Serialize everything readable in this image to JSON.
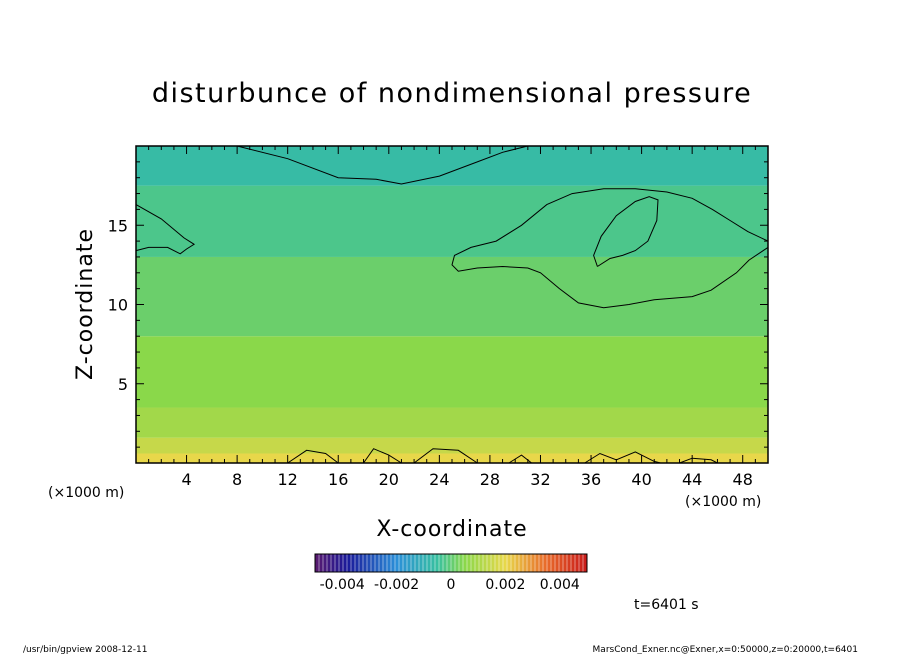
{
  "chart_data": {
    "type": "heatmap",
    "title": "disturbunce of nondimensional pressure",
    "xlabel": "X-coordinate",
    "ylabel": "Z-coordinate",
    "x_unit": "(×1000 m)",
    "y_unit": "(×1000 m)",
    "xlim": [
      0,
      50
    ],
    "ylim": [
      0,
      20
    ],
    "x_ticks": [
      4,
      8,
      12,
      16,
      20,
      24,
      28,
      32,
      36,
      40,
      44,
      48
    ],
    "y_ticks": [
      5,
      10,
      15
    ],
    "colorbar": {
      "range": [
        -0.005,
        0.005
      ],
      "tick_values": [
        -0.004,
        -0.002,
        0,
        0.002,
        0.004
      ],
      "tick_labels": [
        "-0.004",
        "-0.002",
        "0",
        "0.002",
        "0.004"
      ]
    },
    "fill_levels": [
      {
        "z": [
          0.0,
          0.6
        ],
        "value": 0.0008
      },
      {
        "z": [
          0.6,
          1.6
        ],
        "value": 0.0005
      },
      {
        "z": [
          1.6,
          3.5
        ],
        "value": 0.0002
      },
      {
        "z": [
          3.5,
          8.0
        ],
        "value": 0.0
      },
      {
        "z": [
          8.0,
          13.0
        ],
        "value": -0.0002
      },
      {
        "z": [
          13.0,
          17.5
        ],
        "value": -0.0004
      },
      {
        "z": [
          17.5,
          20.0
        ],
        "value": -0.0006
      }
    ],
    "contours": [
      {
        "name": "top",
        "points": [
          [
            8,
            20
          ],
          [
            12,
            19.2
          ],
          [
            16,
            18.0
          ],
          [
            19,
            17.9
          ],
          [
            21,
            17.6
          ],
          [
            24,
            18.1
          ],
          [
            27,
            19.0
          ],
          [
            29,
            19.6
          ],
          [
            31,
            20
          ]
        ]
      },
      {
        "name": "left",
        "points": [
          [
            0,
            16.3
          ],
          [
            2,
            15.4
          ],
          [
            3.8,
            14.2
          ],
          [
            4.6,
            13.8
          ],
          [
            4,
            13.5
          ],
          [
            3.5,
            13.2
          ],
          [
            2.5,
            13.6
          ],
          [
            1,
            13.6
          ],
          [
            0,
            13.4
          ]
        ]
      },
      {
        "name": "right-outer",
        "points": [
          [
            50,
            13.6
          ],
          [
            48.5,
            12.8
          ],
          [
            47.5,
            12.0
          ],
          [
            45.5,
            10.9
          ],
          [
            44,
            10.5
          ],
          [
            41,
            10.3
          ],
          [
            39,
            10.0
          ],
          [
            37,
            9.8
          ],
          [
            35,
            10.1
          ],
          [
            33.5,
            11.0
          ],
          [
            32,
            12.0
          ],
          [
            31,
            12.3
          ],
          [
            29,
            12.4
          ],
          [
            27,
            12.3
          ],
          [
            25.5,
            12.1
          ],
          [
            25,
            12.5
          ],
          [
            25.2,
            13.1
          ],
          [
            26.5,
            13.6
          ],
          [
            28.5,
            14.0
          ],
          [
            30.5,
            15.0
          ],
          [
            32.5,
            16.3
          ],
          [
            34.5,
            17.0
          ],
          [
            37,
            17.3
          ],
          [
            39.5,
            17.3
          ],
          [
            42,
            17.1
          ],
          [
            44,
            16.7
          ],
          [
            45.6,
            16.0
          ],
          [
            47,
            15.3
          ],
          [
            48.4,
            14.6
          ],
          [
            50,
            14.0
          ]
        ]
      },
      {
        "name": "right-inner",
        "points": [
          [
            36.5,
            12.4
          ],
          [
            37.5,
            12.9
          ],
          [
            38.5,
            13.1
          ],
          [
            39.5,
            13.4
          ],
          [
            40.5,
            14.0
          ],
          [
            41.2,
            15.3
          ],
          [
            41.3,
            16.6
          ],
          [
            40.6,
            16.8
          ],
          [
            39.5,
            16.5
          ],
          [
            38,
            15.6
          ],
          [
            36.8,
            14.3
          ],
          [
            36.2,
            13.1
          ],
          [
            36.5,
            12.4
          ]
        ]
      },
      {
        "name": "bottom-1",
        "points": [
          [
            12,
            0
          ],
          [
            13.5,
            0.8
          ],
          [
            15,
            0.6
          ],
          [
            16,
            0
          ]
        ]
      },
      {
        "name": "bottom-2",
        "points": [
          [
            18,
            0
          ],
          [
            18.8,
            0.9
          ],
          [
            20,
            0.5
          ],
          [
            21,
            0
          ]
        ]
      },
      {
        "name": "bottom-3",
        "points": [
          [
            22,
            0
          ],
          [
            23.5,
            0.9
          ],
          [
            25.5,
            0.8
          ],
          [
            27,
            0
          ]
        ]
      },
      {
        "name": "bottom-4",
        "points": [
          [
            29.5,
            0
          ],
          [
            30.5,
            0.5
          ],
          [
            31.3,
            0
          ]
        ]
      },
      {
        "name": "bottom-5",
        "points": [
          [
            35.5,
            0
          ],
          [
            36.7,
            0.6
          ],
          [
            38,
            0.2
          ],
          [
            39.5,
            0.7
          ],
          [
            41,
            0.1
          ],
          [
            41.5,
            0
          ]
        ]
      },
      {
        "name": "bottom-6",
        "points": [
          [
            43,
            0
          ],
          [
            44,
            0.3
          ],
          [
            45.5,
            0.2
          ],
          [
            46,
            0
          ]
        ]
      }
    ]
  },
  "time_label": "t=6401 s",
  "footer": {
    "left": "/usr/bin/gpview   2008-12-11",
    "right": "MarsCond_Exner.nc@Exner,x=0:50000,z=0:20000,t=6401"
  }
}
